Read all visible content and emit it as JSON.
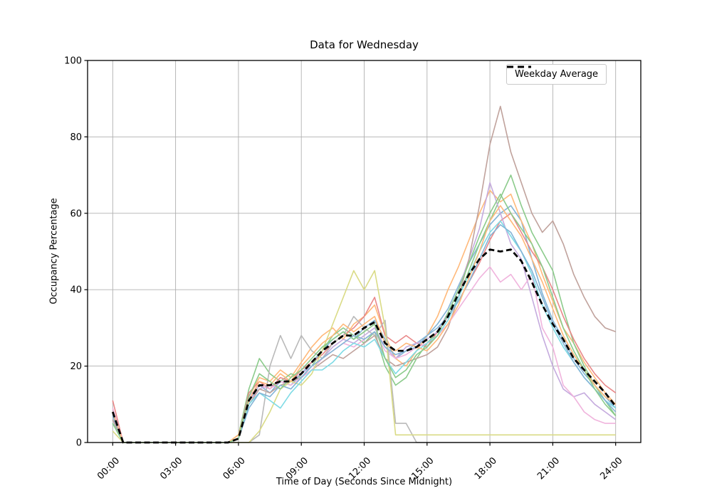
{
  "chart_data": {
    "type": "line",
    "title": "Data for Wednesday",
    "xlabel": "Time of Day (Seconds Since Midnight)",
    "ylabel": "Occupancy Percentage",
    "background_color": "#ffffff",
    "grid": true,
    "grid_color": "#b0b0b0",
    "ylim": [
      0,
      100
    ],
    "xlim_display_hours": [
      -1.2,
      25.2
    ],
    "x_ticks": [
      {
        "hours": 0,
        "label": "00:00"
      },
      {
        "hours": 3,
        "label": "03:00"
      },
      {
        "hours": 6,
        "label": "06:00"
      },
      {
        "hours": 9,
        "label": "09:00"
      },
      {
        "hours": 12,
        "label": "12:00"
      },
      {
        "hours": 15,
        "label": "15:00"
      },
      {
        "hours": 18,
        "label": "18:00"
      },
      {
        "hours": 21,
        "label": "21:00"
      },
      {
        "hours": 24,
        "label": "24:00"
      }
    ],
    "y_ticks": [
      {
        "value": 0,
        "label": "0"
      },
      {
        "value": 20,
        "label": "20"
      },
      {
        "value": 40,
        "label": "40"
      },
      {
        "value": 60,
        "label": "60"
      },
      {
        "value": 80,
        "label": "80"
      },
      {
        "value": 100,
        "label": "100"
      }
    ],
    "legend": {
      "position": "upper right",
      "entries": [
        {
          "label": "Weekday Average",
          "color": "#000000",
          "dash": true
        }
      ]
    },
    "x_hours": [
      0,
      0.5,
      1,
      1.5,
      2,
      2.5,
      3,
      3.5,
      4,
      4.5,
      5,
      5.5,
      6,
      6.5,
      7,
      7.5,
      8,
      8.5,
      9,
      9.5,
      10,
      10.5,
      11,
      11.5,
      12,
      12.5,
      13,
      13.5,
      14,
      14.5,
      15,
      15.5,
      16,
      16.5,
      17,
      17.5,
      18,
      18.5,
      19,
      19.5,
      20,
      20.5,
      21,
      21.5,
      22,
      22.5,
      23,
      23.5,
      24
    ],
    "series": [
      {
        "name": "line-01",
        "color": "#83b4d6",
        "width": 1.6,
        "values": [
          7,
          0,
          0,
          0,
          0,
          0,
          0,
          0,
          0,
          0,
          0,
          0,
          1,
          11,
          15,
          13,
          16,
          15,
          18,
          21,
          24,
          27,
          29,
          27,
          30,
          32,
          27,
          22,
          24,
          26,
          28,
          31,
          35,
          41,
          47,
          52,
          57,
          60,
          62,
          58,
          48,
          39,
          32,
          27,
          22,
          18,
          15,
          12,
          9
        ]
      },
      {
        "name": "line-02",
        "color": "#ffb97a",
        "width": 1.6,
        "values": [
          8,
          0,
          0,
          0,
          0,
          0,
          0,
          0,
          0,
          0,
          0,
          0,
          2,
          12,
          17,
          16,
          19,
          17,
          21,
          25,
          28,
          30,
          27,
          31,
          33,
          36,
          28,
          22,
          20,
          24,
          28,
          33,
          40,
          46,
          53,
          60,
          66,
          63,
          65,
          58,
          52,
          44,
          37,
          30,
          26,
          21,
          17,
          13,
          10
        ]
      },
      {
        "name": "line-03",
        "color": "#8bcb8b",
        "width": 1.6,
        "values": [
          5,
          0,
          0,
          0,
          0,
          0,
          0,
          0,
          0,
          0,
          0,
          0,
          2,
          14,
          22,
          18,
          16,
          18,
          17,
          20,
          24,
          28,
          30,
          28,
          26,
          29,
          20,
          15,
          17,
          22,
          26,
          29,
          33,
          38,
          45,
          52,
          58,
          64,
          70,
          62,
          55,
          50,
          45,
          35,
          26,
          20,
          15,
          11,
          7
        ]
      },
      {
        "name": "line-04",
        "color": "#e98889",
        "width": 1.6,
        "values": [
          11,
          0,
          0,
          0,
          0,
          0,
          0,
          0,
          0,
          0,
          0,
          0,
          1,
          13,
          16,
          14,
          17,
          16,
          19,
          21,
          23,
          26,
          28,
          30,
          33,
          38,
          28,
          26,
          28,
          26,
          25,
          29,
          33,
          37,
          42,
          47,
          53,
          58,
          60,
          55,
          50,
          46,
          40,
          33,
          27,
          22,
          18,
          15,
          13
        ]
      },
      {
        "name": "line-05",
        "color": "#c5abde",
        "width": 1.6,
        "values": [
          6,
          0,
          0,
          0,
          0,
          0,
          0,
          0,
          0,
          0,
          0,
          0,
          1,
          11,
          14,
          15,
          14,
          16,
          18,
          20,
          22,
          25,
          27,
          26,
          28,
          30,
          25,
          22,
          25,
          26,
          27,
          29,
          34,
          40,
          48,
          56,
          68,
          60,
          52,
          48,
          38,
          28,
          20,
          14,
          12,
          13,
          10,
          8,
          6
        ]
      },
      {
        "name": "line-06",
        "color": "#c0a29c",
        "width": 1.6,
        "values": [
          6,
          0,
          0,
          0,
          0,
          0,
          0,
          0,
          0,
          0,
          0,
          0,
          1,
          10,
          14,
          13,
          15,
          16,
          17,
          19,
          21,
          23,
          22,
          24,
          26,
          28,
          22,
          20,
          21,
          22,
          23,
          25,
          30,
          38,
          48,
          62,
          78,
          88,
          76,
          68,
          60,
          55,
          58,
          52,
          44,
          38,
          33,
          30,
          29
        ]
      },
      {
        "name": "line-07",
        "color": "#f0b4dd",
        "width": 1.6,
        "values": [
          9,
          0,
          0,
          0,
          0,
          0,
          0,
          0,
          0,
          0,
          0,
          0,
          1,
          12,
          15,
          14,
          16,
          15,
          17,
          19,
          22,
          24,
          26,
          25,
          27,
          29,
          24,
          22,
          23,
          25,
          26,
          28,
          31,
          35,
          39,
          43,
          46,
          42,
          44,
          40,
          44,
          30,
          25,
          15,
          12,
          8,
          6,
          5,
          5
        ]
      },
      {
        "name": "line-08",
        "color": "#b9b9b9",
        "width": 1.6,
        "values": [
          0,
          0,
          0,
          0,
          0,
          0,
          0,
          0,
          0,
          0,
          0,
          0,
          0,
          0,
          2,
          20,
          28,
          22,
          28,
          24,
          22,
          26,
          28,
          33,
          30,
          28,
          32,
          5,
          5,
          0,
          0,
          0,
          0,
          0,
          0,
          0,
          0,
          0,
          0,
          0,
          0,
          0,
          0,
          0,
          0,
          0,
          0,
          0,
          0
        ]
      },
      {
        "name": "line-09",
        "color": "#dadb86",
        "width": 1.6,
        "values": [
          3,
          0,
          0,
          0,
          0,
          0,
          0,
          0,
          0,
          0,
          0,
          0,
          0,
          0,
          3,
          8,
          14,
          16,
          15,
          18,
          24,
          31,
          38,
          45,
          40,
          45,
          30,
          2,
          2,
          2,
          2,
          2,
          2,
          2,
          2,
          2,
          2,
          2,
          2,
          2,
          2,
          2,
          2,
          2,
          2,
          2,
          2,
          2,
          2
        ]
      },
      {
        "name": "line-10",
        "color": "#7fdbe5",
        "width": 1.6,
        "values": [
          5,
          0,
          0,
          0,
          0,
          0,
          0,
          0,
          0,
          0,
          0,
          0,
          1,
          10,
          13,
          11,
          9,
          13,
          16,
          19,
          19,
          21,
          24,
          26,
          25,
          27,
          22,
          18,
          21,
          24,
          26,
          28,
          32,
          38,
          44,
          50,
          55,
          58,
          54,
          50,
          44,
          36,
          30,
          25,
          21,
          17,
          14,
          11,
          9
        ]
      },
      {
        "name": "line-11",
        "color": "#83b4d6",
        "width": 1.6,
        "values": [
          7,
          0,
          0,
          0,
          0,
          0,
          0,
          0,
          0,
          0,
          0,
          0,
          1,
          9,
          13,
          12,
          15,
          14,
          17,
          20,
          22,
          24,
          26,
          28,
          27,
          29,
          25,
          23,
          24,
          25,
          28,
          30,
          33,
          37,
          42,
          48,
          54,
          57,
          55,
          50,
          45,
          38,
          31,
          26,
          21,
          17,
          14,
          11,
          8
        ]
      },
      {
        "name": "line-12",
        "color": "#ffb97a",
        "width": 1.6,
        "values": [
          8,
          0,
          0,
          0,
          0,
          0,
          0,
          0,
          0,
          0,
          0,
          0,
          2,
          11,
          16,
          15,
          18,
          16,
          20,
          23,
          26,
          28,
          31,
          29,
          31,
          33,
          26,
          24,
          26,
          25,
          24,
          27,
          31,
          36,
          43,
          50,
          58,
          62,
          58,
          54,
          48,
          42,
          35,
          28,
          23,
          19,
          15,
          12,
          10
        ]
      },
      {
        "name": "line-13",
        "color": "#8bcb8b",
        "width": 1.6,
        "values": [
          5,
          0,
          0,
          0,
          0,
          0,
          0,
          0,
          0,
          0,
          0,
          0,
          1,
          12,
          18,
          16,
          14,
          17,
          19,
          22,
          25,
          27,
          29,
          27,
          29,
          31,
          22,
          17,
          19,
          23,
          25,
          28,
          34,
          40,
          47,
          54,
          60,
          65,
          60,
          56,
          52,
          46,
          38,
          30,
          24,
          19,
          14,
          10,
          7
        ]
      },
      {
        "name": "weekday-average",
        "color": "#000000",
        "width": 2.8,
        "dash": "8 4.5",
        "values": [
          8,
          0,
          0,
          0,
          0,
          0,
          0,
          0,
          0,
          0,
          0,
          0,
          1,
          11,
          15,
          15,
          16,
          16,
          18,
          21,
          24,
          26,
          28,
          28,
          30,
          31.5,
          26,
          24,
          24,
          25,
          27,
          29,
          33,
          39,
          44,
          48,
          50.5,
          50,
          50.5,
          47.5,
          42,
          36,
          31,
          27,
          22,
          19,
          16,
          13,
          9.5
        ]
      }
    ]
  }
}
